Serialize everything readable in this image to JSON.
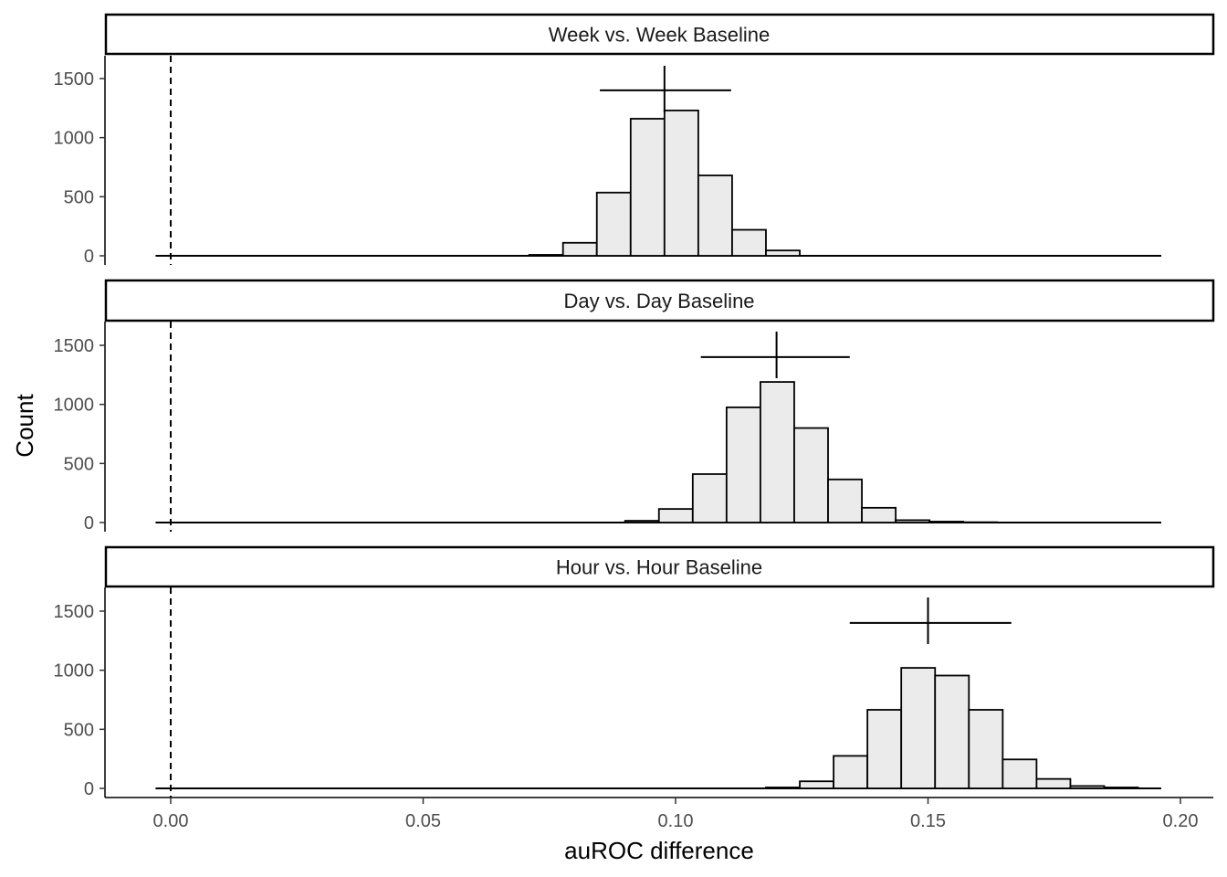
{
  "chart_data": {
    "type": "histogram",
    "xlabel": "auROC difference",
    "ylabel": "Count",
    "xlim": [
      -0.0128,
      0.2
    ],
    "ylim": [
      0,
      1600
    ],
    "x_ticks": [
      "0.00",
      "0.05",
      "0.10",
      "0.15",
      "0.20"
    ],
    "y_ticks": [
      "0",
      "500",
      "1000",
      "1500"
    ],
    "reference_line": {
      "x": 0,
      "style": "dashed"
    },
    "bin_width": 0.0067,
    "bar_fill": "#ebebeb",
    "bar_stroke": "#000000",
    "grid": false,
    "panels": [
      {
        "strip": "Week vs. Week Baseline",
        "bins": [
          {
            "x0": 0.071,
            "count": 8
          },
          {
            "x0": 0.0777,
            "count": 110
          },
          {
            "x0": 0.0844,
            "count": 535
          },
          {
            "x0": 0.0911,
            "count": 1160
          },
          {
            "x0": 0.0978,
            "count": 1230
          },
          {
            "x0": 0.1045,
            "count": 680
          },
          {
            "x0": 0.1112,
            "count": 220
          },
          {
            "x0": 0.1179,
            "count": 45
          }
        ],
        "summary": {
          "mean": 0.0978,
          "ci_low": 0.085,
          "ci_high": 0.111,
          "y_center": 1400
        }
      },
      {
        "strip": "Day vs. Day Baseline",
        "bins": [
          {
            "x0": 0.09,
            "count": 15
          },
          {
            "x0": 0.0967,
            "count": 115
          },
          {
            "x0": 0.1034,
            "count": 410
          },
          {
            "x0": 0.1101,
            "count": 975
          },
          {
            "x0": 0.1168,
            "count": 1190
          },
          {
            "x0": 0.1235,
            "count": 800
          },
          {
            "x0": 0.1302,
            "count": 365
          },
          {
            "x0": 0.1369,
            "count": 125
          },
          {
            "x0": 0.1436,
            "count": 20
          },
          {
            "x0": 0.1503,
            "count": 8
          },
          {
            "x0": 0.157,
            "count": 3
          }
        ],
        "summary": {
          "mean": 0.12,
          "ci_low": 0.105,
          "ci_high": 0.1345,
          "y_center": 1400
        }
      },
      {
        "strip": "Hour vs. Hour Baseline",
        "bins": [
          {
            "x0": 0.1179,
            "count": 8
          },
          {
            "x0": 0.1246,
            "count": 60
          },
          {
            "x0": 0.1313,
            "count": 275
          },
          {
            "x0": 0.138,
            "count": 665
          },
          {
            "x0": 0.1447,
            "count": 1020
          },
          {
            "x0": 0.1514,
            "count": 955
          },
          {
            "x0": 0.1581,
            "count": 665
          },
          {
            "x0": 0.1648,
            "count": 245
          },
          {
            "x0": 0.1715,
            "count": 80
          },
          {
            "x0": 0.1782,
            "count": 20
          },
          {
            "x0": 0.1849,
            "count": 8
          }
        ],
        "summary": {
          "mean": 0.15,
          "ci_low": 0.1345,
          "ci_high": 0.1665,
          "y_center": 1400
        }
      }
    ],
    "baseline_span": [
      -0.003,
      0.1962
    ]
  }
}
